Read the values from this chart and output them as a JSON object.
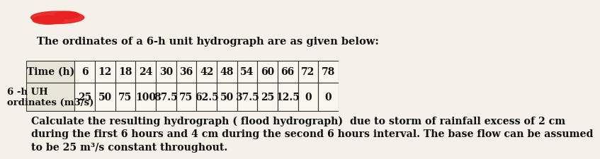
{
  "title_line": "The ordinates of a 6-h unit hydrograph are as given below:",
  "row1_label": "Time (h)",
  "row1_values": [
    "6",
    "12",
    "18",
    "24",
    "30",
    "36",
    "42",
    "48",
    "54",
    "60",
    "66",
    "72",
    "78"
  ],
  "row2_label": "6 -h UH\nordinates (m3/s)",
  "row2_values": [
    "25",
    "50",
    "75",
    "100",
    "87.5",
    "75",
    "62.5",
    "50",
    "37.5",
    "25",
    "12.5",
    "0",
    "0"
  ],
  "footer_text": "Calculate the resulting hydrograph ( flood hydrograph)  due to storm of rainfall excess of 2 cm\nduring the first 6 hours and 4 cm during the second 6 hours interval. The base flow can be assumed\nto be 25 m³/s constant throughout.",
  "redbox_color": "#e82020",
  "bg_color": "#f5f0e8",
  "table_header_bg": "#e8e4d8",
  "text_color": "#111111",
  "title_fontsize": 10.5,
  "table_fontsize": 10,
  "footer_fontsize": 10.2,
  "label_fontsize": 10
}
